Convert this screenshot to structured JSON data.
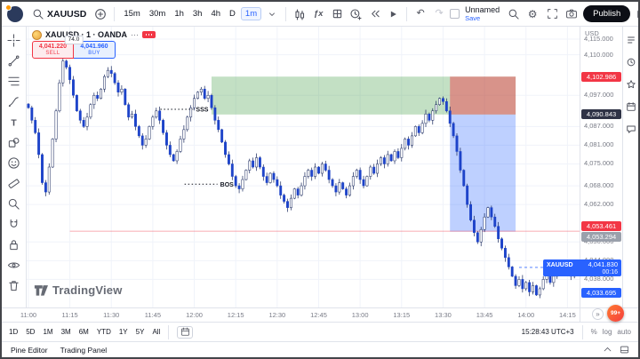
{
  "topbar": {
    "symbol": "XAUUSD",
    "timeframes": [
      "15m",
      "30m",
      "1h",
      "3h",
      "4h",
      "D",
      "1m"
    ],
    "active_timeframe": "1m",
    "layout_name": "Unnamed",
    "save_label": "Save",
    "publish_label": "Publish"
  },
  "legend": {
    "title": "XAUUSD · 1 · OANDA"
  },
  "trade_widget": {
    "sell_price": "4,041.220",
    "sell_label": "SELL",
    "spread": "74.0",
    "buy_price": "4,041.960",
    "buy_label": "BUY"
  },
  "watermark": {
    "text": "TradingView"
  },
  "price_axis": {
    "currency": "USD",
    "labels": [
      {
        "price": 4115,
        "text": "4,115.000"
      },
      {
        "price": 4110,
        "text": "4,110.000"
      },
      {
        "price": 4097,
        "text": "4,097.000"
      },
      {
        "price": 4087,
        "text": "4,087.000"
      },
      {
        "price": 4081,
        "text": "4,081.000"
      },
      {
        "price": 4075,
        "text": "4,075.000"
      },
      {
        "price": 4068,
        "text": "4,068.000"
      },
      {
        "price": 4062,
        "text": "4,062.000"
      },
      {
        "price": 4050,
        "text": "4,050.000"
      },
      {
        "price": 4044,
        "text": "4,044.000"
      },
      {
        "price": 4038,
        "text": "4,038.000"
      }
    ],
    "tags": [
      {
        "text": "4,102.986",
        "price": 4102.986,
        "bg": "#f23645",
        "dy": -5.5
      },
      {
        "text": "4,090.843",
        "price": 4090.843,
        "bg": "#2f3346",
        "dy": -5.5
      },
      {
        "text": "4,053.461",
        "price": 4053.461,
        "bg": "#f23645",
        "dy": -11
      },
      {
        "text": "4,053.294",
        "price": 4053.294,
        "bg": "#9aa0ab",
        "dy": 0.5
      },
      {
        "text": "4,033.695",
        "price": 4033.695,
        "bg": "#2962ff",
        "dy": -5.5
      }
    ],
    "current": {
      "symbol": "XAUUSD",
      "price": "4,041.830",
      "countdown": "00:16",
      "value": 4041.83,
      "bg": "#2962ff"
    }
  },
  "range_bar": {
    "ranges": [
      "1D",
      "5D",
      "1M",
      "3M",
      "6M",
      "YTD",
      "1Y",
      "5Y",
      "All"
    ],
    "clock": "15:28:43 UTC+3",
    "scales": [
      "%",
      "log",
      "auto"
    ]
  },
  "status_bar": {
    "tabs": [
      "Pine Editor",
      "Trading Panel"
    ]
  },
  "fab": {
    "count": "99+"
  },
  "chart_data": {
    "type": "candlestick",
    "symbol": "XAUUSD",
    "interval": "1m",
    "exchange": "OANDA",
    "ylim": [
      4029,
      4119
    ],
    "time_ticks": [
      {
        "idx": 0,
        "label": "11:00"
      },
      {
        "idx": 12,
        "label": "11:15"
      },
      {
        "idx": 24,
        "label": "11:30"
      },
      {
        "idx": 36,
        "label": "11:45"
      },
      {
        "idx": 48,
        "label": "12:00"
      },
      {
        "idx": 60,
        "label": "12:15"
      },
      {
        "idx": 72,
        "label": "12:30"
      },
      {
        "idx": 84,
        "label": "12:45"
      },
      {
        "idx": 96,
        "label": "13:00"
      },
      {
        "idx": 108,
        "label": "13:15"
      },
      {
        "idx": 120,
        "label": "13:30"
      },
      {
        "idx": 132,
        "label": "13:45"
      },
      {
        "idx": 144,
        "label": "14:00"
      },
      {
        "idx": 156,
        "label": "14:15"
      }
    ],
    "closes": [
      4093,
      4089,
      4085,
      4078,
      4069,
      4066,
      4074,
      4083,
      4092,
      4101,
      4108,
      4106,
      4102,
      4097,
      4092,
      4089,
      4087,
      4090,
      4094,
      4097,
      4096,
      4099,
      4103,
      4105,
      4104,
      4101,
      4098,
      4099,
      4094,
      4090,
      4091,
      4087,
      4084,
      4081,
      4083,
      4087,
      4090,
      4092,
      4089,
      4085,
      4081,
      4078,
      4076,
      4079,
      4083,
      4086,
      4090,
      4093,
      4096,
      4098,
      4099,
      4096,
      4097,
      4093,
      4089,
      4086,
      4082,
      4078,
      4075,
      4071,
      4068,
      4067,
      4070,
      4073,
      4076,
      4074,
      4077,
      4074,
      4071,
      4069,
      4072,
      4070,
      4068,
      4065,
      4063,
      4061,
      4064,
      4067,
      4065,
      4068,
      4071,
      4073,
      4071,
      4074,
      4072,
      4075,
      4073,
      4070,
      4068,
      4066,
      4069,
      4067,
      4065,
      4068,
      4071,
      4073,
      4070,
      4068,
      4071,
      4074,
      4072,
      4075,
      4077,
      4075,
      4078,
      4076,
      4079,
      4077,
      4080,
      4083,
      4081,
      4084,
      4087,
      4085,
      4088,
      4091,
      4089,
      4092,
      4094,
      4096,
      4095,
      4092,
      4088,
      4084,
      4079,
      4073,
      4068,
      4062,
      4057,
      4053,
      4050,
      4054,
      4058,
      4061,
      4058,
      4055,
      4051,
      4048,
      4045,
      4042,
      4039,
      4036,
      4038,
      4035,
      4037,
      4034,
      4036,
      4033,
      4035,
      4038,
      4040,
      4037,
      4039,
      4042,
      4040,
      4043,
      4041,
      4039,
      4042,
      4041.8
    ],
    "zones": [
      {
        "name": "supply-zone-green",
        "from_idx": 53,
        "to_idx": 141,
        "top": 4102.986,
        "bottom": 4090.843,
        "color": "rgba(67,160,71,0.32)"
      },
      {
        "name": "risk-zone-red",
        "from_idx": 122,
        "to_idx": 141,
        "top": 4102.986,
        "bottom": 4090.843,
        "color": "rgba(242,54,69,0.45)"
      },
      {
        "name": "demand-zone-blue",
        "from_idx": 122,
        "to_idx": 141,
        "top": 4090.843,
        "bottom": 4053.3,
        "color": "rgba(41,98,255,0.30)"
      }
    ],
    "hline": {
      "price": 4053.461,
      "from_idx": 12
    },
    "current_price": 4041.83,
    "annotations": [
      {
        "text": "SSS",
        "idx": 49,
        "price": 4092.5
      },
      {
        "text": "BOS",
        "idx": 56,
        "price": 4068.5
      }
    ]
  }
}
